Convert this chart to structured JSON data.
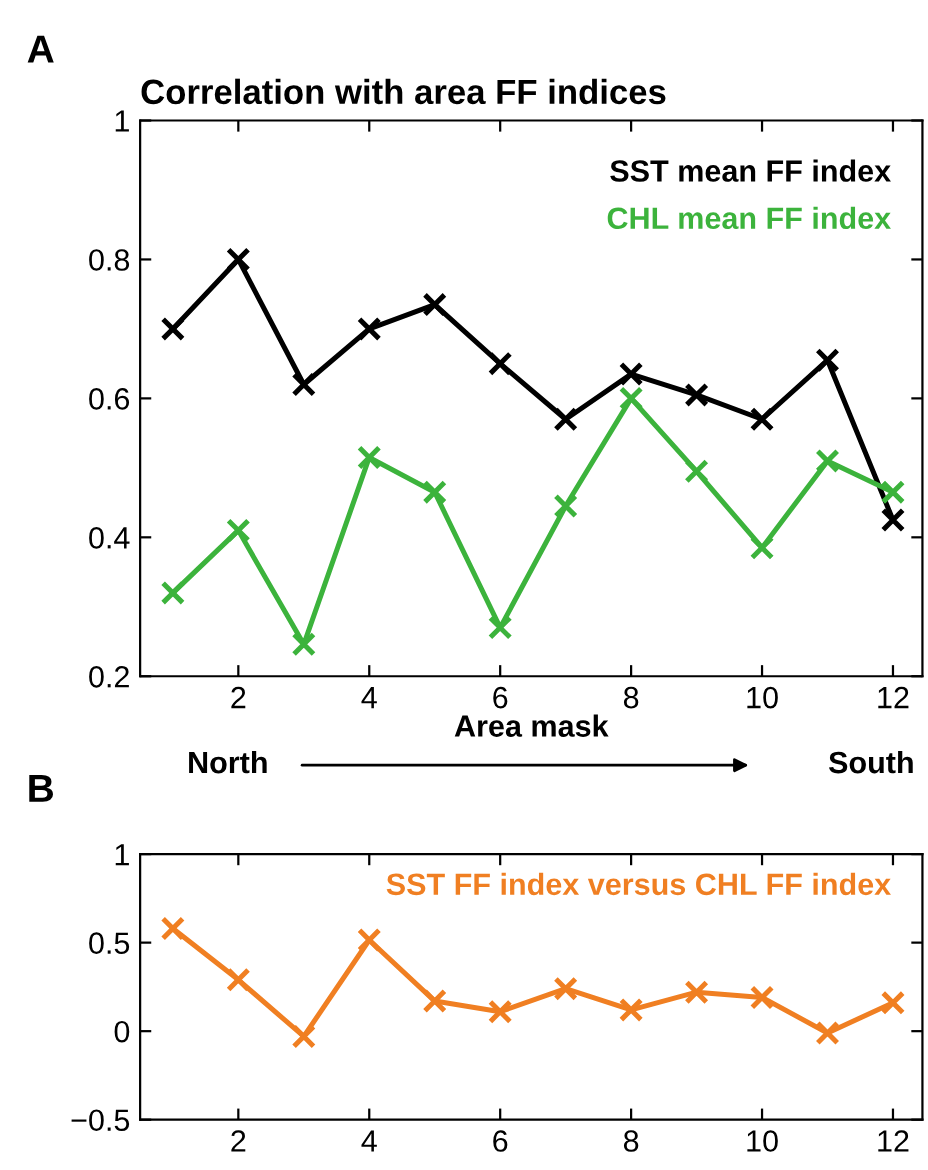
{
  "chart_data": [
    {
      "type": "line",
      "title": "Correlation with area FF indices",
      "xlabel": "Area mask",
      "x": [
        1,
        2,
        3,
        4,
        5,
        6,
        7,
        8,
        9,
        10,
        11,
        12
      ],
      "series": [
        {
          "name": "SST mean FF index",
          "color": "#000000",
          "values": [
            0.7,
            0.8,
            0.62,
            0.7,
            0.735,
            0.65,
            0.57,
            0.635,
            0.605,
            0.57,
            0.655,
            0.425
          ]
        },
        {
          "name": "CHL mean FF index",
          "color": "#3cb33c",
          "values": [
            0.32,
            0.41,
            0.246,
            0.515,
            0.465,
            0.27,
            0.445,
            0.6,
            0.495,
            0.385,
            0.51,
            0.465
          ]
        }
      ],
      "xlim": [
        0.5,
        12.45
      ],
      "ylim": [
        0.2,
        1
      ],
      "xticks": [
        2,
        4,
        6,
        8,
        10,
        12
      ],
      "yticks": [
        0.2,
        0.4,
        0.6,
        0.8,
        1
      ],
      "marker": "cross",
      "line_style": "solid",
      "grid": false,
      "legend": "top right",
      "annotations": [
        "A",
        "North",
        "South"
      ]
    },
    {
      "type": "line",
      "x": [
        1,
        2,
        3,
        4,
        5,
        6,
        7,
        8,
        9,
        10,
        11,
        12
      ],
      "series": [
        {
          "name": "SST FF index versus CHL FF index",
          "color": "#f07f22",
          "values": [
            0.58,
            0.29,
            -0.03,
            0.515,
            0.17,
            0.11,
            0.24,
            0.12,
            0.22,
            0.19,
            -0.01,
            0.16
          ]
        }
      ],
      "xlim": [
        0.5,
        12.45
      ],
      "ylim": [
        -0.5,
        1
      ],
      "xticks": [
        2,
        4,
        6,
        8,
        10,
        12
      ],
      "yticks": [
        {
          "value": -0.5,
          "label": "−0.5"
        },
        0,
        0.5,
        1
      ],
      "marker": "cross",
      "line_style": "solid",
      "grid": false,
      "legend": "top right",
      "annotations": [
        "B"
      ]
    }
  ]
}
